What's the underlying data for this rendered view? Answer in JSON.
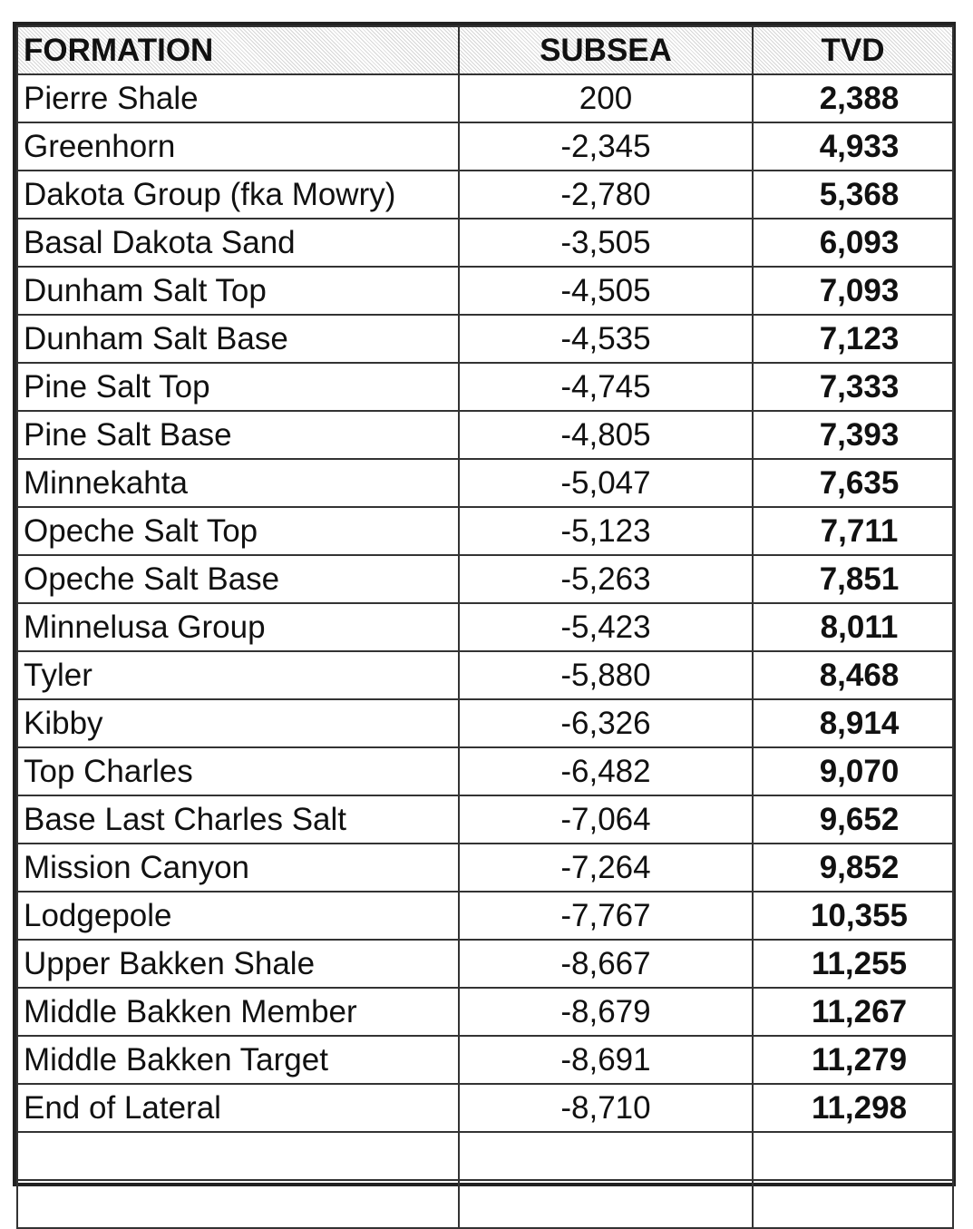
{
  "table": {
    "headers": [
      "FORMATION",
      "SUBSEA",
      "TVD"
    ],
    "rows": [
      {
        "formation": "Pierre Shale",
        "subsea": "200",
        "tvd": "2,388"
      },
      {
        "formation": "Greenhorn",
        "subsea": "-2,345",
        "tvd": "4,933"
      },
      {
        "formation": "Dakota Group (fka Mowry)",
        "subsea": "-2,780",
        "tvd": "5,368"
      },
      {
        "formation": "Basal Dakota Sand",
        "subsea": "-3,505",
        "tvd": "6,093"
      },
      {
        "formation": "Dunham Salt Top",
        "subsea": "-4,505",
        "tvd": "7,093"
      },
      {
        "formation": "Dunham Salt Base",
        "subsea": "-4,535",
        "tvd": "7,123"
      },
      {
        "formation": "Pine Salt Top",
        "subsea": "-4,745",
        "tvd": "7,333"
      },
      {
        "formation": "Pine Salt Base",
        "subsea": "-4,805",
        "tvd": "7,393"
      },
      {
        "formation": "Minnekahta",
        "subsea": "-5,047",
        "tvd": "7,635"
      },
      {
        "formation": "Opeche Salt Top",
        "subsea": "-5,123",
        "tvd": "7,711"
      },
      {
        "formation": "Opeche Salt Base",
        "subsea": "-5,263",
        "tvd": "7,851"
      },
      {
        "formation": "Minnelusa Group",
        "subsea": "-5,423",
        "tvd": "8,011"
      },
      {
        "formation": "Tyler",
        "subsea": "-5,880",
        "tvd": "8,468"
      },
      {
        "formation": "Kibby",
        "subsea": "-6,326",
        "tvd": "8,914"
      },
      {
        "formation": "Top Charles",
        "subsea": "-6,482",
        "tvd": "9,070"
      },
      {
        "formation": "Base Last Charles Salt",
        "subsea": "-7,064",
        "tvd": "9,652"
      },
      {
        "formation": "Mission Canyon",
        "subsea": "-7,264",
        "tvd": "9,852"
      },
      {
        "formation": "Lodgepole",
        "subsea": "-7,767",
        "tvd": "10,355"
      },
      {
        "formation": "Upper Bakken Shale",
        "subsea": "-8,667",
        "tvd": "11,255"
      },
      {
        "formation": "Middle Bakken Member",
        "subsea": "-8,679",
        "tvd": "11,267"
      },
      {
        "formation": "Middle Bakken Target",
        "subsea": "-8,691",
        "tvd": "11,279"
      },
      {
        "formation": "End of Lateral",
        "subsea": "-8,710",
        "tvd": "11,298"
      },
      {
        "formation": "",
        "subsea": "",
        "tvd": ""
      },
      {
        "formation": "",
        "subsea": "",
        "tvd": ""
      }
    ]
  }
}
